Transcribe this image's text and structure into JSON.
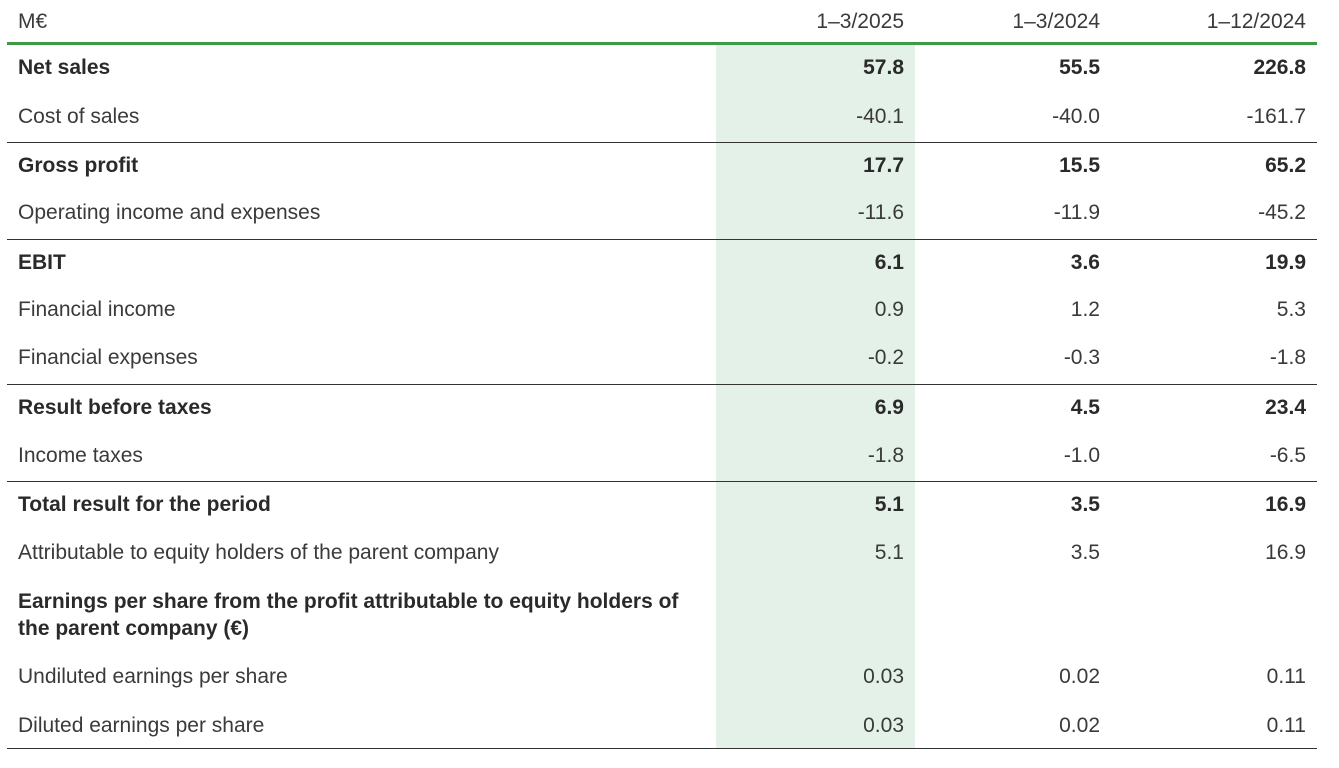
{
  "header": {
    "unit": "M€",
    "col1": "1–3/2025",
    "col2": "1–3/2024",
    "col3": "1–12/2024"
  },
  "rows": [
    {
      "label": "Net sales",
      "v1": "57.8",
      "v2": "55.5",
      "v3": "226.8"
    },
    {
      "label": "Cost of sales",
      "v1": "-40.1",
      "v2": "-40.0",
      "v3": "-161.7"
    },
    {
      "label": "Gross profit",
      "v1": "17.7",
      "v2": "15.5",
      "v3": "65.2"
    },
    {
      "label": "Operating income and expenses",
      "v1": "-11.6",
      "v2": "-11.9",
      "v3": "-45.2"
    },
    {
      "label": "EBIT",
      "v1": "6.1",
      "v2": "3.6",
      "v3": "19.9"
    },
    {
      "label": "Financial income",
      "v1": "0.9",
      "v2": "1.2",
      "v3": "5.3"
    },
    {
      "label": "Financial expenses",
      "v1": "-0.2",
      "v2": "-0.3",
      "v3": "-1.8"
    },
    {
      "label": "Result before taxes",
      "v1": "6.9",
      "v2": "4.5",
      "v3": "23.4"
    },
    {
      "label": "Income taxes",
      "v1": "-1.8",
      "v2": "-1.0",
      "v3": "-6.5"
    },
    {
      "label": "Total result for the period",
      "v1": "5.1",
      "v2": "3.5",
      "v3": "16.9"
    },
    {
      "label": "Attributable to equity holders of the parent company",
      "v1": "5.1",
      "v2": "3.5",
      "v3": "16.9"
    },
    {
      "label": "Earnings per share from the profit attributable to equity holders of the parent company (€)"
    },
    {
      "label": "Undiluted earnings per share",
      "v1": "0.03",
      "v2": "0.02",
      "v3": "0.11"
    },
    {
      "label": "Diluted earnings per share",
      "v1": "0.03",
      "v2": "0.02",
      "v3": "0.11"
    }
  ]
}
